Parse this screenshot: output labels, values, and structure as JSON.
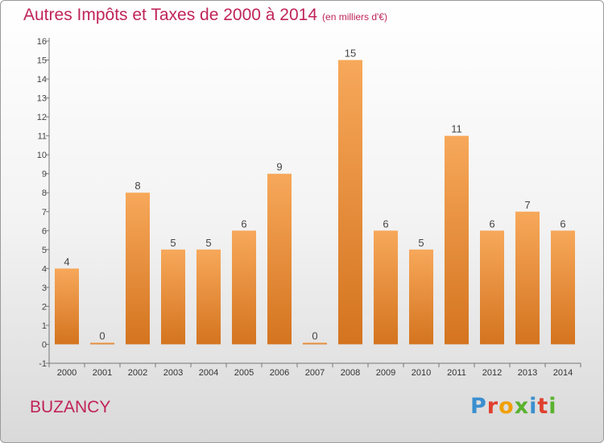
{
  "title": "Autres Impôts et Taxes de 2000 à 2014",
  "unit": "(en milliers d'€)",
  "place": "BUZANCY",
  "logo": "Proxiti",
  "colors": {
    "bar_top": "#f7a85a",
    "bar_bottom": "#d4741f",
    "title": "#c0245a",
    "axis": "#777777"
  },
  "chart_data": {
    "type": "bar",
    "title": "Autres Impôts et Taxes de 2000 à 2014",
    "categories": [
      "2000",
      "2001",
      "2002",
      "2003",
      "2004",
      "2005",
      "2006",
      "2007",
      "2008",
      "2009",
      "2010",
      "2011",
      "2012",
      "2013",
      "2014"
    ],
    "values": [
      4,
      0,
      8,
      5,
      5,
      6,
      9,
      0,
      15,
      6,
      5,
      11,
      6,
      7,
      6
    ],
    "ylim": [
      -1,
      16
    ],
    "yticks": [
      -1,
      0,
      1,
      2,
      3,
      4,
      5,
      6,
      7,
      8,
      9,
      10,
      11,
      12,
      13,
      14,
      15,
      16
    ],
    "grid": false,
    "data_labels": true
  }
}
